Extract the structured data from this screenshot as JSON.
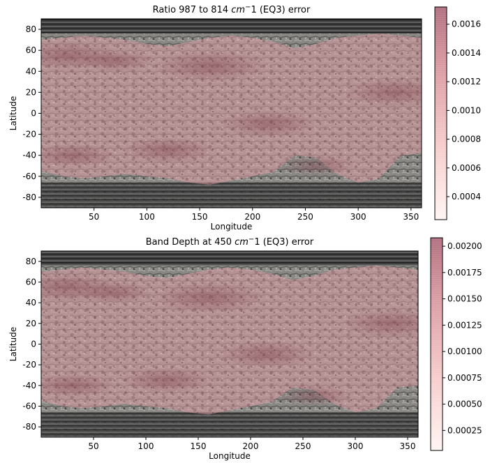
{
  "chart_data": [
    {
      "type": "heatmap",
      "title_prefix": "Ratio 987 to 814 ",
      "title_unit": "cm",
      "title_sup": "−",
      "title_suffix": "1 (EQ3) error",
      "xlabel": "Longitude",
      "ylabel": "Latitude",
      "xlim": [
        0,
        360
      ],
      "ylim": [
        -90,
        90
      ],
      "xticks": [
        50,
        100,
        150,
        200,
        250,
        300,
        350
      ],
      "yticks": [
        -80,
        -60,
        -40,
        -20,
        0,
        20,
        40,
        60,
        80
      ],
      "colorbar": {
        "min": 0.00024,
        "max": 0.00172,
        "ticks": [
          0.0004,
          0.0006,
          0.0008,
          0.001,
          0.0012,
          0.0014,
          0.0016
        ],
        "tick_labels": [
          "0.0004",
          "0.0006",
          "0.0008",
          "0.0010",
          "0.0012",
          "0.0014",
          "0.0016"
        ],
        "colors": [
          "#fff5f3",
          "#b16f7f"
        ]
      },
      "coverage_lat_north": [
        70,
        72,
        74,
        72,
        70,
        66,
        64,
        68,
        72,
        74,
        72,
        68,
        62,
        66,
        72,
        74,
        76,
        74,
        72
      ],
      "coverage_lat_south": [
        -55,
        -60,
        -62,
        -60,
        -58,
        -60,
        -62,
        -66,
        -68,
        -64,
        -60,
        -56,
        -40,
        -42,
        -58,
        -66,
        -62,
        -40,
        -38
      ]
    },
    {
      "type": "heatmap",
      "title_prefix": "Band Depth at 450 ",
      "title_unit": "cm",
      "title_sup": "−",
      "title_suffix": "1 (EQ3) error",
      "xlabel": "Longitude",
      "ylabel": "Latitude",
      "xlim": [
        0,
        360
      ],
      "ylim": [
        -90,
        90
      ],
      "xticks": [
        50,
        100,
        150,
        200,
        250,
        300,
        350
      ],
      "yticks": [
        -80,
        -60,
        -40,
        -20,
        0,
        20,
        40,
        60,
        80
      ],
      "colorbar": {
        "min": 6e-05,
        "max": 0.00208,
        "ticks": [
          0.00025,
          0.0005,
          0.00075,
          0.001,
          0.00125,
          0.0015,
          0.00175,
          0.002
        ],
        "tick_labels": [
          "0.00025",
          "0.00050",
          "0.00075",
          "0.00100",
          "0.00125",
          "0.00150",
          "0.00175",
          "0.00200"
        ],
        "colors": [
          "#fff5f3",
          "#b16f7f"
        ]
      },
      "coverage_lat_north": [
        70,
        72,
        74,
        72,
        70,
        66,
        64,
        68,
        72,
        74,
        72,
        68,
        62,
        66,
        72,
        74,
        76,
        74,
        72
      ],
      "coverage_lat_south": [
        -55,
        -60,
        -62,
        -60,
        -58,
        -60,
        -62,
        -66,
        -68,
        -64,
        -60,
        -56,
        -42,
        -44,
        -58,
        -66,
        -62,
        -42,
        -40
      ]
    }
  ]
}
